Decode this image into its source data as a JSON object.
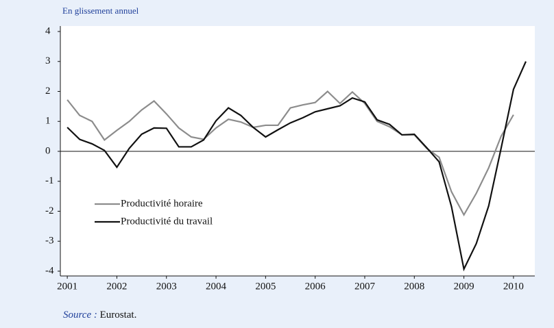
{
  "chart_data": {
    "type": "line",
    "subtitle": "En glissement annuel",
    "source_label": "Source :",
    "source": "Eurostat.",
    "x": [
      2001,
      2001.25,
      2001.5,
      2001.75,
      2002,
      2002.25,
      2002.5,
      2002.75,
      2003,
      2003.25,
      2003.5,
      2003.75,
      2004,
      2004.25,
      2004.5,
      2004.75,
      2005,
      2005.25,
      2005.5,
      2005.75,
      2006,
      2006.25,
      2006.5,
      2006.75,
      2007,
      2007.25,
      2007.5,
      2007.75,
      2008,
      2008.25,
      2008.5,
      2008.75,
      2009,
      2009.25,
      2009.5,
      2009.75,
      2010,
      2010.25
    ],
    "series": [
      {
        "name": "Productivité horaire",
        "color": "#8c8c8c",
        "values": [
          1.72,
          1.2,
          1.0,
          0.38,
          0.7,
          1.0,
          1.38,
          1.68,
          1.25,
          0.78,
          0.48,
          0.4,
          0.78,
          1.07,
          0.98,
          0.8,
          0.87,
          0.87,
          1.45,
          1.55,
          1.63,
          2.0,
          1.6,
          1.98,
          1.6,
          1.0,
          0.82,
          0.55,
          0.55,
          0.1,
          -0.2,
          -1.35,
          -2.12,
          -1.4,
          -0.55,
          0.5,
          1.22,
          null
        ]
      },
      {
        "name": "Productivité du travail",
        "color": "#111111",
        "values": [
          0.8,
          0.4,
          0.25,
          0.03,
          -0.53,
          0.1,
          0.57,
          0.78,
          0.77,
          0.15,
          0.15,
          0.38,
          1.02,
          1.45,
          1.2,
          0.8,
          0.48,
          0.72,
          0.95,
          1.12,
          1.32,
          1.42,
          1.52,
          1.78,
          1.65,
          1.05,
          0.9,
          0.55,
          0.57,
          0.12,
          -0.35,
          -1.85,
          -3.93,
          -3.08,
          -1.82,
          0.1,
          2.07,
          3.0
        ]
      }
    ],
    "xlim": [
      2000.86,
      2010.43
    ],
    "xticks": [
      2001,
      2002,
      2003,
      2004,
      2005,
      2006,
      2007,
      2008,
      2009,
      2010
    ],
    "ylim": [
      -4,
      4
    ],
    "yticks": [
      -4,
      -3,
      -2,
      -1,
      0,
      1,
      2,
      3,
      4
    ],
    "grid": false,
    "legend": "lower left"
  }
}
